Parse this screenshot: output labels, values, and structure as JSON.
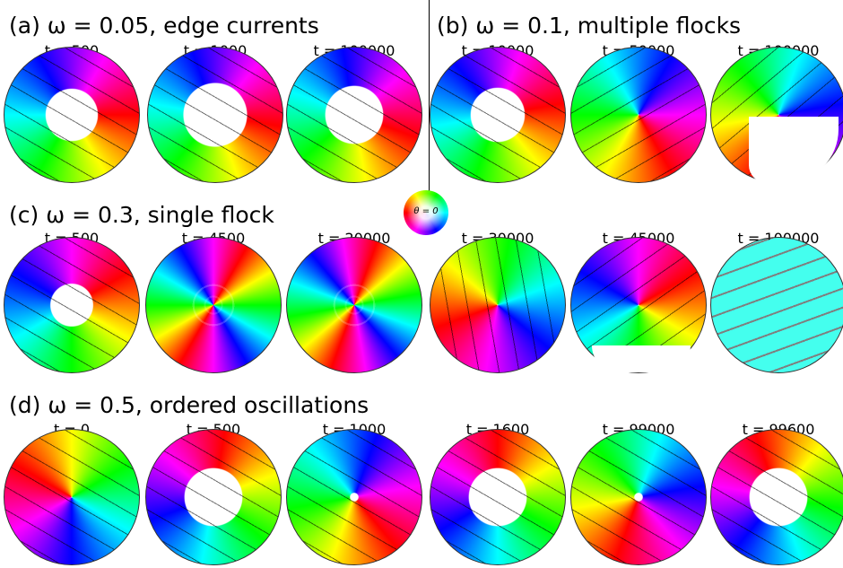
{
  "panels": [
    {
      "title": "(a) ω = 0.05, edge currents",
      "times": [
        "t = 500",
        "t = 1000",
        "t = 100000"
      ]
    },
    {
      "title": "(b) ω = 0.1, multiple flocks",
      "times": [
        "t = 10000",
        "t = 50000",
        "t = 100000"
      ]
    },
    {
      "title": "(c) ω = 0.3, single flock",
      "times": [
        "t = 500",
        "t = 4500",
        "t = 20000",
        "t = 30000",
        "t = 45000",
        "t = 100000"
      ]
    },
    {
      "title": "(d) ω = 0.5, ordered oscillations",
      "times": [
        "t = 0",
        "t = 500",
        "t = 1000",
        "t = 1600",
        "t = 99000",
        "t = 99600"
      ]
    }
  ],
  "colorwheel_label": "θ = 0"
}
